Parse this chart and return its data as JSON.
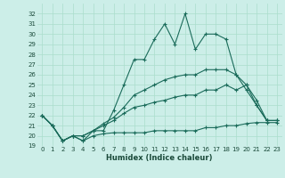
{
  "xlabel": "Humidex (Indice chaleur)",
  "background_color": "#cceee8",
  "grid_color": "#aaddcc",
  "line_color": "#1a6b5a",
  "xlim": [
    -0.5,
    23.5
  ],
  "ylim": [
    19,
    33
  ],
  "xticks": [
    0,
    1,
    2,
    3,
    4,
    5,
    6,
    7,
    8,
    9,
    10,
    11,
    12,
    13,
    14,
    15,
    16,
    17,
    18,
    19,
    20,
    21,
    22,
    23
  ],
  "yticks": [
    19,
    20,
    21,
    22,
    23,
    24,
    25,
    26,
    27,
    28,
    29,
    30,
    31,
    32
  ],
  "series": [
    [
      22,
      21,
      19.5,
      20,
      19.5,
      20.5,
      20.5,
      22.5,
      25,
      27.5,
      27.5,
      29.5,
      31.0,
      29.0,
      32.0,
      28.5,
      30.0,
      30.0,
      29.5,
      26.0,
      24.5,
      23.0,
      21.5,
      21.5
    ],
    [
      22,
      21,
      19.5,
      20,
      19.5,
      20.0,
      20.2,
      20.3,
      20.3,
      20.3,
      20.3,
      20.5,
      20.5,
      20.5,
      20.5,
      20.5,
      20.8,
      20.8,
      21.0,
      21.0,
      21.2,
      21.3,
      21.3,
      21.3
    ],
    [
      22,
      21,
      19.5,
      20,
      20.0,
      20.5,
      21.0,
      21.5,
      22.2,
      22.8,
      23.0,
      23.3,
      23.5,
      23.8,
      24.0,
      24.0,
      24.5,
      24.5,
      25.0,
      24.5,
      25.0,
      23.5,
      21.5,
      21.5
    ],
    [
      22,
      21,
      19.5,
      20,
      20.0,
      20.5,
      21.2,
      21.8,
      22.8,
      24.0,
      24.5,
      25.0,
      25.5,
      25.8,
      26.0,
      26.0,
      26.5,
      26.5,
      26.5,
      26.0,
      25.0,
      23.0,
      21.5,
      21.5
    ]
  ]
}
